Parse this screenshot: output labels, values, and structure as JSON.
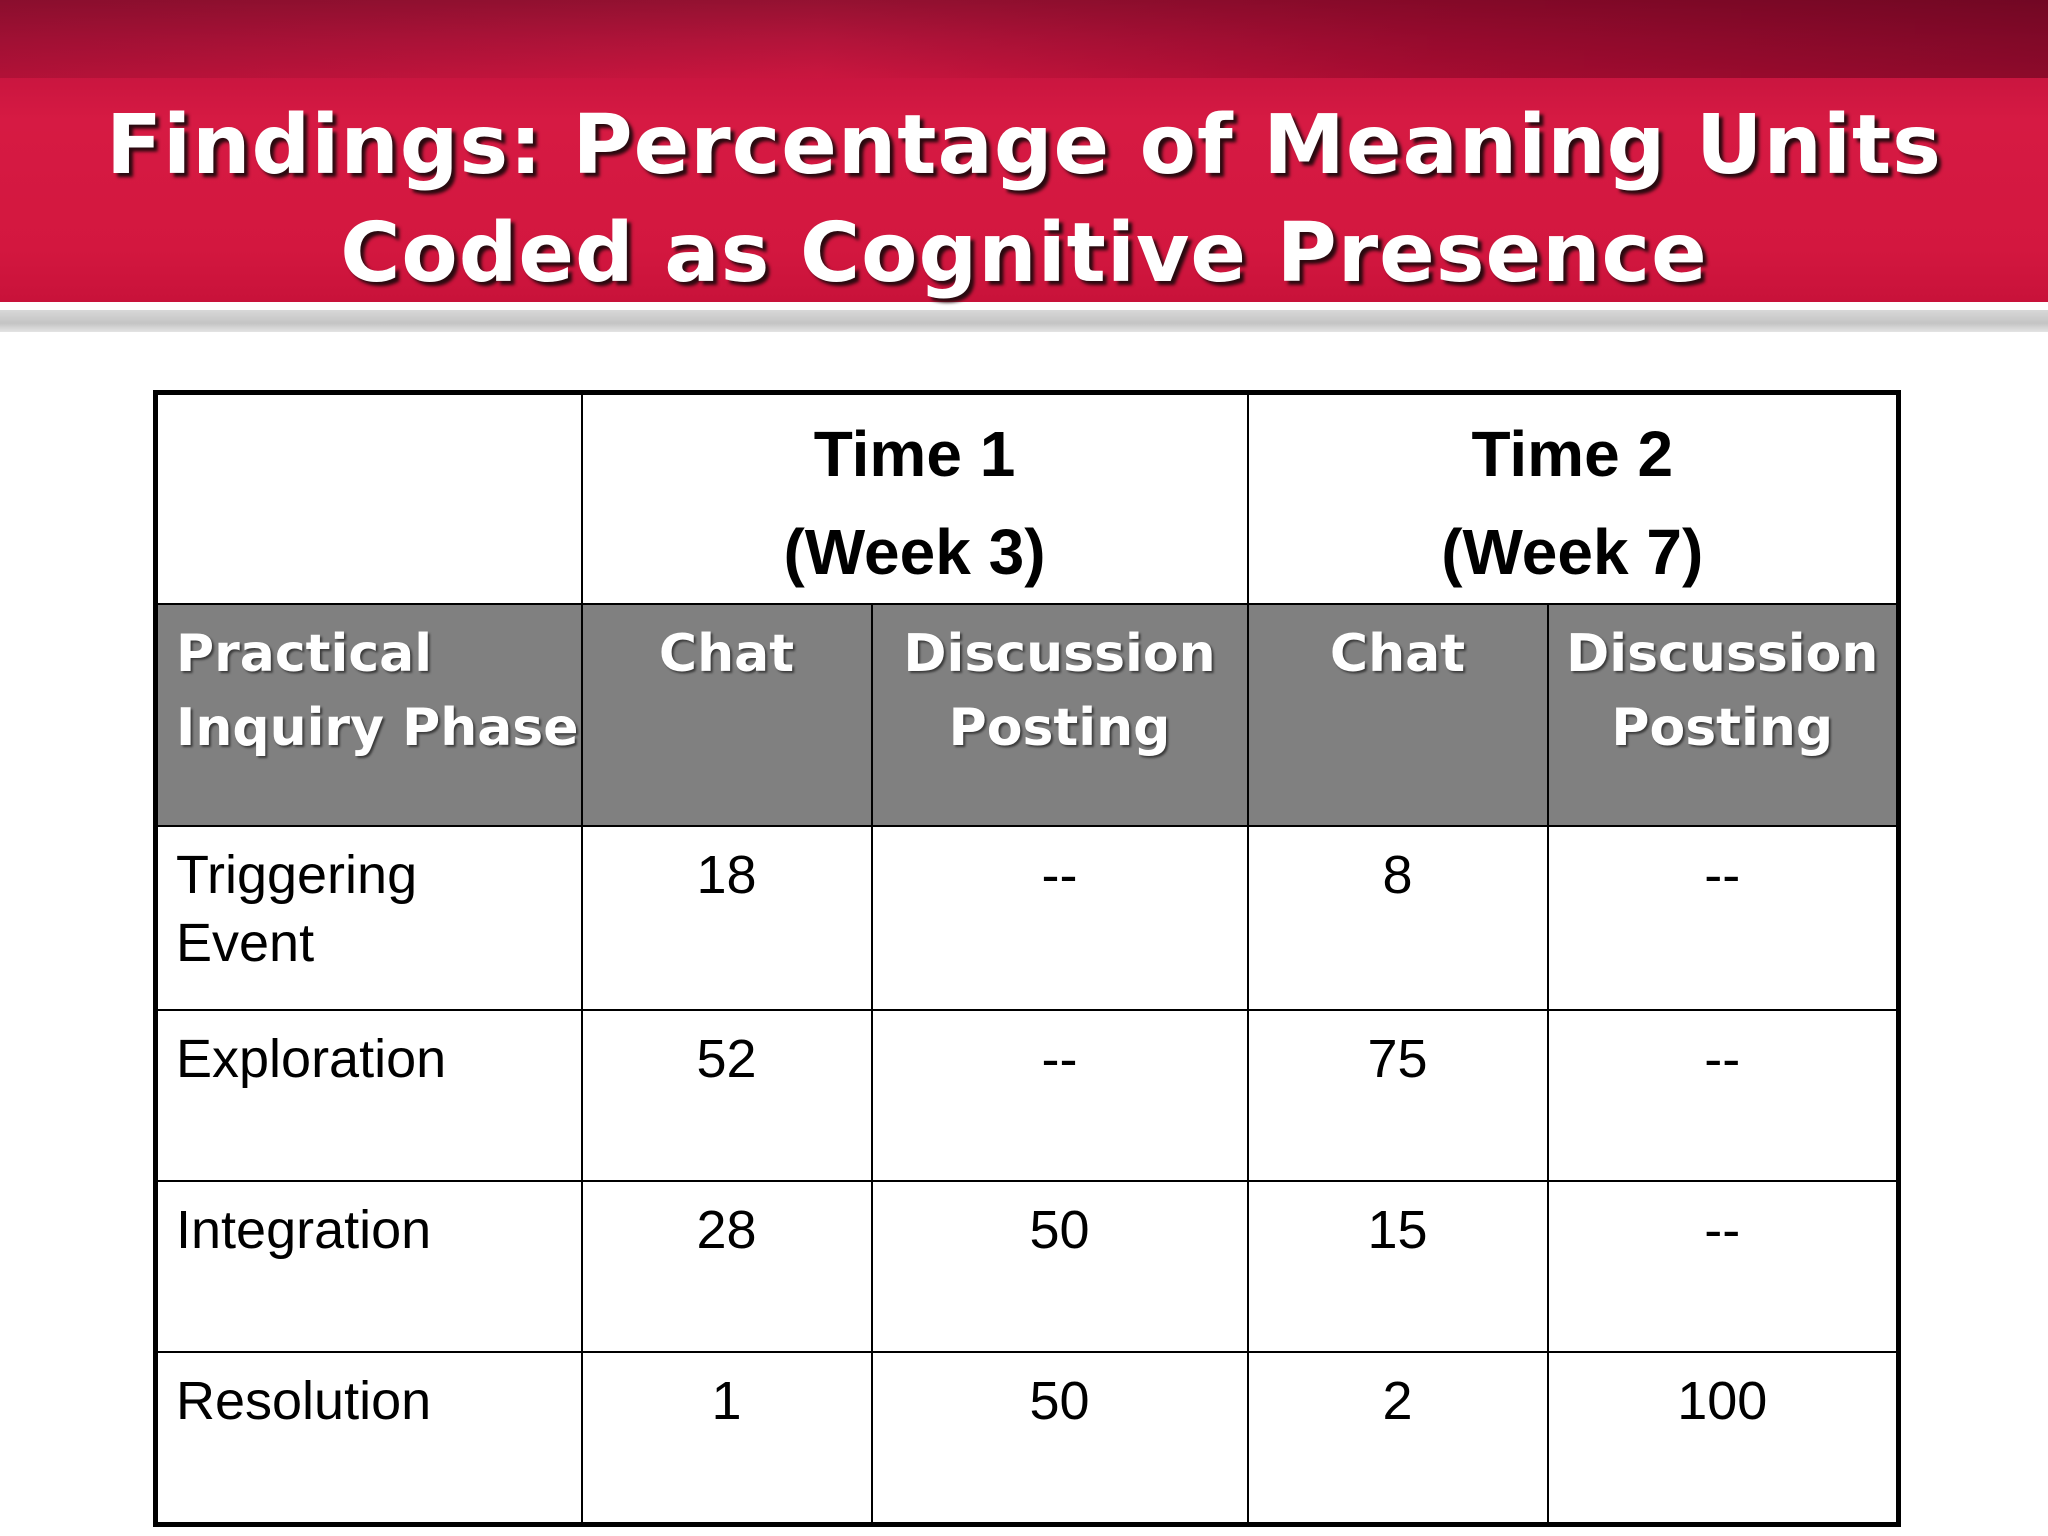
{
  "slide": {
    "title_line1": "Findings:  Percentage of Meaning Units",
    "title_line2": "Coded as Cognitive Presence"
  },
  "table": {
    "time_groups": [
      {
        "line1": "Time 1",
        "line2": "(Week 3)"
      },
      {
        "line1": "Time 2",
        "line2": "(Week 7)"
      }
    ],
    "column_headers": {
      "phase": {
        "line1": "Practical",
        "line2": "Inquiry Phase"
      },
      "t1_chat": "Chat",
      "t1_discussion": {
        "line1": "Discussion",
        "line2": "Posting"
      },
      "t2_chat": "Chat",
      "t2_discussion": {
        "line1": "Discussion",
        "line2": "Posting"
      }
    },
    "rows": [
      {
        "phase_line1": "Triggering",
        "phase_line2": "Event",
        "t1_chat": "18",
        "t1_discussion": "--",
        "t2_chat": "8",
        "t2_discussion": "--"
      },
      {
        "phase": "Exploration",
        "t1_chat": "52",
        "t1_discussion": "--",
        "t2_chat": "75",
        "t2_discussion": "--"
      },
      {
        "phase": "Integration",
        "t1_chat": "28",
        "t1_discussion": "50",
        "t2_chat": "15",
        "t2_discussion": "--"
      },
      {
        "phase": "Resolution",
        "t1_chat": "1",
        "t1_discussion": "50",
        "t2_chat": "2",
        "t2_discussion": "100"
      }
    ]
  }
}
